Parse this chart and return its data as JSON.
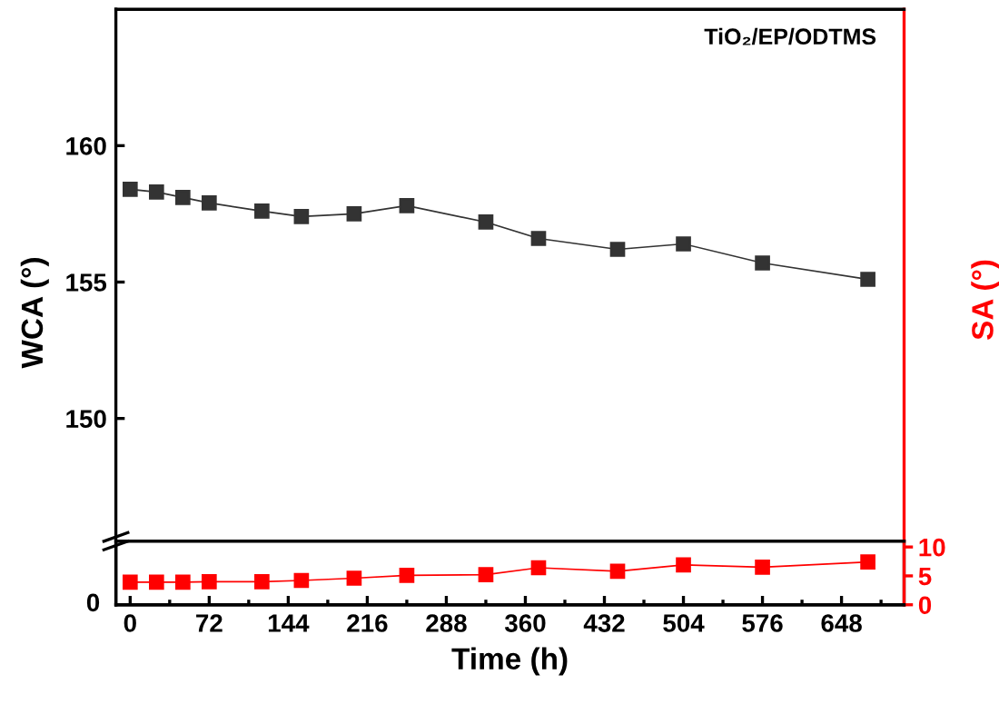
{
  "chart_data": [
    {
      "type": "line",
      "x": [
        0,
        24,
        48,
        72,
        120,
        156,
        204,
        252,
        324,
        372,
        444,
        504,
        576,
        672
      ],
      "xlim": [
        -13,
        705
      ],
      "xticks": [
        0,
        72,
        144,
        216,
        288,
        360,
        432,
        504,
        576,
        648
      ],
      "ylim": [
        145.5,
        165
      ],
      "yticks": [
        150,
        155,
        160
      ],
      "ylabel": "WCA (°)",
      "tick_labels": "y",
      "marker": "square",
      "line_style": "solid",
      "annotations": [
        "TiO₂/EP/ODTMS"
      ],
      "series": [
        {
          "color": "#333333",
          "values": [
            158.4,
            158.3,
            158.1,
            157.9,
            157.6,
            157.4,
            157.5,
            157.8,
            157.2,
            156.6,
            156.2,
            156.4,
            155.7,
            155.1
          ]
        }
      ]
    },
    {
      "type": "line",
      "x": [
        0,
        24,
        48,
        72,
        120,
        156,
        204,
        252,
        324,
        372,
        444,
        504,
        576,
        672
      ],
      "xlim": [
        -13,
        705
      ],
      "xticks": [
        0,
        72,
        144,
        216,
        288,
        360,
        432,
        504,
        576,
        648
      ],
      "y2lim": [
        0,
        11
      ],
      "y2ticks": [
        0,
        5,
        10
      ],
      "xlabel": "Time (h)",
      "y2label": "SA (°)",
      "marker": "square",
      "line_style": "solid",
      "annotations": [
        "0"
      ],
      "series": [
        {
          "color": "#ff0000",
          "axis": "y2",
          "values": [
            3.9,
            3.9,
            3.9,
            4.0,
            4.0,
            4.2,
            4.6,
            5.1,
            5.2,
            6.4,
            5.8,
            6.9,
            6.5,
            7.4
          ]
        }
      ]
    }
  ]
}
